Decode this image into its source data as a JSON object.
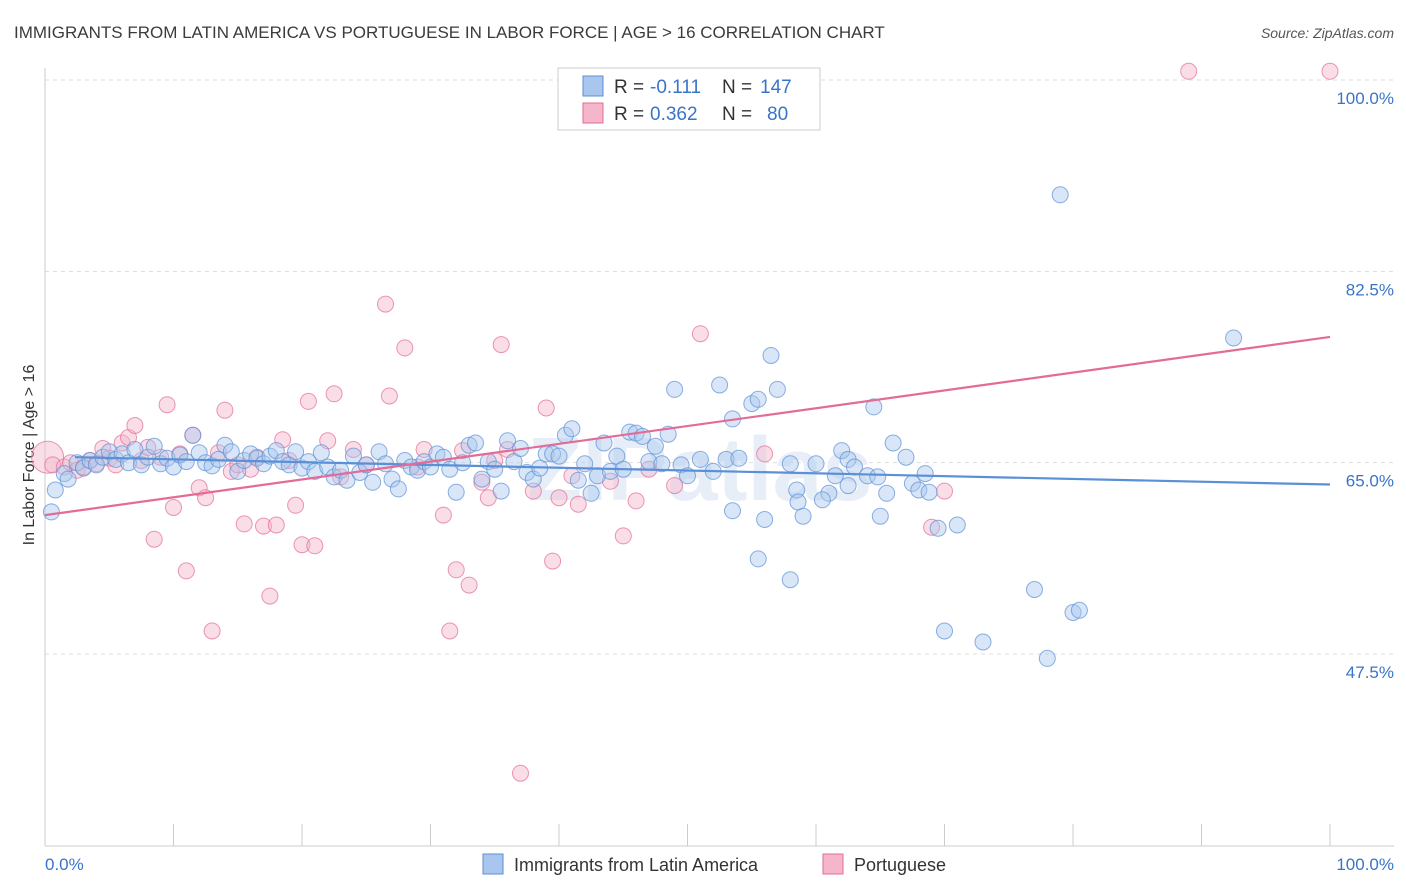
{
  "title": "IMMIGRANTS FROM LATIN AMERICA VS PORTUGUESE IN LABOR FORCE | AGE > 16 CORRELATION CHART",
  "source": "Source: ZipAtlas.com",
  "watermark": "ZIPatlas",
  "colors": {
    "blue": "#5b8fd6",
    "blue_fill": "#a9c7ee",
    "pink": "#e46b96",
    "pink_fill": "#f5b6ca",
    "tick_text": "#3a74c9",
    "grid": "#dddddd"
  },
  "legend": {
    "rows": [
      {
        "r_label": "R =",
        "r_value": "-0.111",
        "n_label": "N =",
        "n_value": "147"
      },
      {
        "r_label": "R =",
        "r_value": "0.362",
        "n_label": "N =",
        "n_value": "80"
      }
    ]
  },
  "bottom_legend": [
    "Immigrants from Latin America",
    "Portuguese"
  ],
  "chart_data": {
    "type": "scatter",
    "title": "IMMIGRANTS FROM LATIN AMERICA VS PORTUGUESE IN LABOR FORCE | AGE > 16 CORRELATION CHART",
    "xlabel": "",
    "ylabel": "In Labor Force | Age > 16",
    "xlim": [
      0,
      100
    ],
    "ylim": [
      30,
      103
    ],
    "x_tick_labels": [
      "0.0%",
      "100.0%"
    ],
    "y_ticks": [
      47.5,
      65.0,
      82.5,
      100.0
    ],
    "y_tick_labels": [
      "47.5%",
      "65.0%",
      "82.5%",
      "100.0%"
    ],
    "grid": true,
    "series": [
      {
        "name": "Immigrants from Latin America",
        "color": "#5b8fd6",
        "trend": {
          "x": [
            0,
            100
          ],
          "y": [
            65.5,
            63.0
          ]
        },
        "points": [
          [
            0.5,
            60.5
          ],
          [
            0.8,
            62.5
          ],
          [
            1.5,
            64
          ],
          [
            1.8,
            63.5
          ],
          [
            2.5,
            65
          ],
          [
            3,
            64.5
          ],
          [
            3.5,
            65.2
          ],
          [
            4,
            64.8
          ],
          [
            4.5,
            65.5
          ],
          [
            5,
            66
          ],
          [
            5.5,
            65.3
          ],
          [
            6,
            65.8
          ],
          [
            6.5,
            65
          ],
          [
            7,
            66.2
          ],
          [
            7.5,
            64.8
          ],
          [
            8,
            65.5
          ],
          [
            8.5,
            66.5
          ],
          [
            9,
            64.9
          ],
          [
            9.5,
            65.4
          ],
          [
            10,
            64.6
          ],
          [
            10.5,
            65.7
          ],
          [
            11,
            65.1
          ],
          [
            11.5,
            67.5
          ],
          [
            12,
            65.9
          ],
          [
            12.5,
            65
          ],
          [
            13,
            64.7
          ],
          [
            13.5,
            65.3
          ],
          [
            14,
            66.6
          ],
          [
            14.5,
            66
          ],
          [
            15,
            64.2
          ],
          [
            15.5,
            65.2
          ],
          [
            16,
            65.8
          ],
          [
            16.5,
            65.4
          ],
          [
            17,
            64.9
          ],
          [
            17.5,
            65.6
          ],
          [
            18,
            66.1
          ],
          [
            18.5,
            65.1
          ],
          [
            19,
            64.8
          ],
          [
            19.5,
            66
          ],
          [
            20,
            64.5
          ],
          [
            20.5,
            65.1
          ],
          [
            21,
            64.2
          ],
          [
            21.5,
            65.9
          ],
          [
            22,
            64.6
          ],
          [
            22.5,
            63.7
          ],
          [
            23,
            64.3
          ],
          [
            23.5,
            63.4
          ],
          [
            24,
            65.6
          ],
          [
            24.5,
            64.1
          ],
          [
            25,
            64.8
          ],
          [
            25.5,
            63.2
          ],
          [
            26,
            66
          ],
          [
            26.5,
            64.9
          ],
          [
            27,
            63.5
          ],
          [
            27.5,
            62.6
          ],
          [
            28,
            65.2
          ],
          [
            28.5,
            64.6
          ],
          [
            29,
            64.3
          ],
          [
            29.5,
            65.1
          ],
          [
            30,
            64.6
          ],
          [
            30.5,
            65.8
          ],
          [
            31,
            65.5
          ],
          [
            31.5,
            64.4
          ],
          [
            32,
            62.3
          ],
          [
            32.5,
            65
          ],
          [
            33,
            66.6
          ],
          [
            33.5,
            66.8
          ],
          [
            34,
            63.5
          ],
          [
            34.5,
            65.1
          ],
          [
            35,
            64.4
          ],
          [
            35.5,
            62.4
          ],
          [
            36,
            67
          ],
          [
            36.5,
            65.1
          ],
          [
            37,
            66.3
          ],
          [
            37.5,
            64.1
          ],
          [
            38,
            63.5
          ],
          [
            38.5,
            64.5
          ],
          [
            39,
            65.8
          ],
          [
            39.5,
            65.8
          ],
          [
            40,
            65.6
          ],
          [
            40.5,
            67.5
          ],
          [
            41,
            68.1
          ],
          [
            41.5,
            63.4
          ],
          [
            42,
            64.9
          ],
          [
            42.5,
            62.2
          ],
          [
            43,
            63.8
          ],
          [
            43.5,
            66.8
          ],
          [
            44,
            64.2
          ],
          [
            44.5,
            65.6
          ],
          [
            45,
            64.4
          ],
          [
            45.5,
            67.8
          ],
          [
            46,
            67.7
          ],
          [
            46.5,
            67.4
          ],
          [
            47,
            65.1
          ],
          [
            47.5,
            66.5
          ],
          [
            48,
            64.9
          ],
          [
            48.5,
            67.6
          ],
          [
            49,
            71.7
          ],
          [
            49.5,
            64.8
          ],
          [
            50,
            63.8
          ],
          [
            51,
            65.3
          ],
          [
            52,
            64.2
          ],
          [
            52.5,
            72.1
          ],
          [
            53,
            65.3
          ],
          [
            53.5,
            69
          ],
          [
            54,
            65.4
          ],
          [
            55,
            70.4
          ],
          [
            55.5,
            70.8
          ],
          [
            56,
            59.8
          ],
          [
            56.5,
            74.8
          ],
          [
            57,
            71.7
          ],
          [
            58,
            64.9
          ],
          [
            58.5,
            62.5
          ],
          [
            58.6,
            61.4
          ],
          [
            59,
            60.1
          ],
          [
            60,
            64.9
          ],
          [
            61,
            62.2
          ],
          [
            62,
            66.1
          ],
          [
            62.5,
            65.3
          ],
          [
            63,
            64.6
          ],
          [
            64,
            63.8
          ],
          [
            64.5,
            70.1
          ],
          [
            65,
            60.1
          ],
          [
            65.5,
            62.2
          ],
          [
            66,
            66.8
          ],
          [
            67.5,
            63.1
          ],
          [
            68,
            62.5
          ],
          [
            68.5,
            64
          ],
          [
            68.8,
            62.3
          ],
          [
            69.5,
            59
          ],
          [
            70,
            49.6
          ],
          [
            71,
            59.3
          ],
          [
            73,
            48.6
          ],
          [
            77,
            53.4
          ],
          [
            78,
            47.1
          ],
          [
            79,
            89.5
          ],
          [
            80,
            51.3
          ],
          [
            80.5,
            51.5
          ],
          [
            92.5,
            76.4
          ],
          [
            55.5,
            56.2
          ],
          [
            58,
            54.3
          ],
          [
            60.5,
            61.6
          ],
          [
            62.5,
            62.9
          ],
          [
            53.5,
            60.6
          ],
          [
            61.5,
            63.8
          ],
          [
            64.8,
            63.7
          ],
          [
            67,
            65.5
          ]
        ]
      },
      {
        "name": "Portuguese",
        "color": "#e46b96",
        "trend": {
          "x": [
            0,
            100
          ],
          "y": [
            60.2,
            76.5
          ]
        },
        "points": [
          [
            0.2,
            65.5
          ],
          [
            0.6,
            64.8
          ],
          [
            1.5,
            64.6
          ],
          [
            2,
            65
          ],
          [
            2.5,
            64.3
          ],
          [
            3,
            64.6
          ],
          [
            3.5,
            65.2
          ],
          [
            4,
            64.9
          ],
          [
            4.5,
            66.3
          ],
          [
            5,
            65.4
          ],
          [
            5.5,
            64.8
          ],
          [
            6,
            66.8
          ],
          [
            6.5,
            67.3
          ],
          [
            7,
            68.4
          ],
          [
            7.5,
            65.2
          ],
          [
            8,
            66.4
          ],
          [
            8.5,
            58
          ],
          [
            9,
            65.5
          ],
          [
            9.5,
            70.3
          ],
          [
            10,
            60.9
          ],
          [
            10.5,
            65.8
          ],
          [
            11,
            55.1
          ],
          [
            11.5,
            67.5
          ],
          [
            12,
            62.7
          ],
          [
            12.5,
            61.8
          ],
          [
            13,
            49.6
          ],
          [
            13.5,
            65.9
          ],
          [
            14,
            69.8
          ],
          [
            14.5,
            64.2
          ],
          [
            15,
            64.8
          ],
          [
            15.5,
            59.4
          ],
          [
            16,
            64.4
          ],
          [
            16.5,
            65.5
          ],
          [
            17,
            59.2
          ],
          [
            17.5,
            52.8
          ],
          [
            18,
            59.3
          ],
          [
            18.5,
            67.1
          ],
          [
            19,
            65.2
          ],
          [
            19.5,
            61.1
          ],
          [
            20,
            57.5
          ],
          [
            20.5,
            70.6
          ],
          [
            21,
            57.4
          ],
          [
            22,
            67
          ],
          [
            22.5,
            71.3
          ],
          [
            23,
            63.7
          ],
          [
            24,
            66.2
          ],
          [
            25,
            64.8
          ],
          [
            26.5,
            79.5
          ],
          [
            26.8,
            71.1
          ],
          [
            28,
            75.5
          ],
          [
            29,
            64.6
          ],
          [
            29.5,
            66.2
          ],
          [
            31,
            60.2
          ],
          [
            31.5,
            49.6
          ],
          [
            32,
            55.2
          ],
          [
            32.5,
            66.1
          ],
          [
            33,
            53.8
          ],
          [
            34,
            63.2
          ],
          [
            34.5,
            61.8
          ],
          [
            35,
            65.2
          ],
          [
            35.5,
            75.8
          ],
          [
            36,
            66.2
          ],
          [
            37,
            36.6
          ],
          [
            38,
            62.4
          ],
          [
            39,
            70
          ],
          [
            39.5,
            56
          ],
          [
            40,
            61.8
          ],
          [
            41,
            63.8
          ],
          [
            41.5,
            61.2
          ],
          [
            44,
            63.3
          ],
          [
            45,
            58.3
          ],
          [
            46,
            61.5
          ],
          [
            47,
            64.4
          ],
          [
            49,
            62.9
          ],
          [
            51,
            76.8
          ],
          [
            69,
            59.1
          ],
          [
            70,
            62.4
          ],
          [
            89,
            100.8
          ],
          [
            100,
            100.8
          ],
          [
            56,
            65.8
          ]
        ]
      }
    ]
  }
}
